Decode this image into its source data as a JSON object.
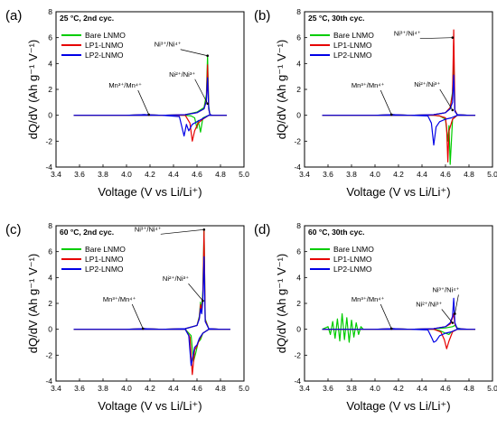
{
  "colors": {
    "Bare LNMO": "#00cc00",
    "LP1-LNMO": "#e60000",
    "LP2-LNMO": "#0000e6",
    "frame": "#000000"
  },
  "panels": [
    {
      "letter": "(a)",
      "cond": "25 °C, 2nd cyc.",
      "ylabel": "dQ/dV (Ah g⁻¹ V⁻¹)",
      "xlabel": "Voltage (V vs Li/Li⁺)",
      "annotations": [
        "Ni³⁺/Ni⁴⁺",
        "Ni²⁺/Ni³⁺",
        "Mn³⁺/Mn⁴⁺"
      ]
    },
    {
      "letter": "(b)",
      "cond": "25 °C, 30th cyc.",
      "ylabel": "dQ/dV (Ah g⁻¹ V⁻¹)",
      "xlabel": "Voltage (V vs Li/Li⁺)",
      "annotations": [
        "Ni³⁺/Ni⁴⁺",
        "Ni²⁺/Ni³⁺",
        "Mn³⁺/Mn⁴⁺"
      ]
    },
    {
      "letter": "(c)",
      "cond": "60 °C, 2nd cyc.",
      "ylabel": "dQ/dV (Ah g⁻¹ V⁻¹)",
      "xlabel": "Voltage (V vs Li/Li⁺)",
      "annotations": [
        "Ni³⁺/Ni⁴⁺",
        "Ni²⁺/Ni³⁺",
        "Mn³⁺/Mn⁴⁺"
      ]
    },
    {
      "letter": "(d)",
      "cond": "60 °C, 30th cyc.",
      "ylabel": "dQ/dV (Ah g⁻¹ V⁻¹)",
      "xlabel": "Voltage (V vs Li/Li⁺)",
      "annotations": [
        "Ni³⁺/Ni⁴⁺",
        "Ni²⁺/Ni³⁺",
        "Mn³⁺/Mn⁴⁺"
      ]
    }
  ],
  "chart_data": [
    {
      "type": "line",
      "panel": "(a)",
      "xlim": [
        3.4,
        5.0
      ],
      "ylim": [
        -4,
        8
      ],
      "xticks": [
        3.4,
        3.6,
        3.8,
        4.0,
        4.2,
        4.4,
        4.6,
        4.8,
        5.0
      ],
      "yticks": [
        -4,
        -2,
        0,
        2,
        4,
        6,
        8
      ],
      "legend": "top-left",
      "series": [
        {
          "name": "Bare LNMO",
          "x": [
            3.55,
            4.0,
            4.15,
            4.3,
            4.5,
            4.6,
            4.66,
            4.68,
            4.69,
            4.7,
            4.71,
            4.73,
            4.8,
            4.85,
            4.8,
            4.7,
            4.65,
            4.63,
            4.61,
            4.6,
            4.58,
            4.55,
            4.5,
            4.3,
            4.1,
            3.55
          ],
          "y": [
            0,
            0,
            0.05,
            0,
            0.05,
            0.25,
            0.6,
            1.6,
            4.6,
            0.7,
            0.05,
            0,
            0,
            0,
            0,
            0,
            -0.2,
            -1.3,
            -0.4,
            -1.0,
            -0.2,
            -0.05,
            0,
            0,
            0,
            0
          ]
        },
        {
          "name": "LP1-LNMO",
          "x": [
            3.55,
            4.0,
            4.15,
            4.3,
            4.5,
            4.6,
            4.66,
            4.68,
            4.69,
            4.7,
            4.71,
            4.73,
            4.8,
            4.85,
            4.8,
            4.7,
            4.65,
            4.61,
            4.58,
            4.56,
            4.54,
            4.5,
            4.3,
            4.1,
            3.55
          ],
          "y": [
            0,
            0,
            0.05,
            0,
            0.05,
            0.2,
            0.5,
            1.2,
            3.9,
            0.5,
            0.05,
            0,
            0,
            0,
            0,
            0,
            -0.3,
            -0.6,
            -1.2,
            -2.0,
            -0.6,
            0,
            0,
            0,
            0
          ]
        },
        {
          "name": "LP2-LNMO",
          "x": [
            3.55,
            4.0,
            4.15,
            4.3,
            4.5,
            4.6,
            4.66,
            4.68,
            4.69,
            4.7,
            4.71,
            4.73,
            4.8,
            4.85,
            4.8,
            4.7,
            4.65,
            4.6,
            4.56,
            4.53,
            4.51,
            4.49,
            4.45,
            4.3,
            4.1,
            3.55
          ],
          "y": [
            0,
            0,
            0.05,
            0,
            0.05,
            0.2,
            0.5,
            1.1,
            2.9,
            0.5,
            0.05,
            0,
            0,
            0,
            0,
            0,
            -0.25,
            -0.5,
            -0.7,
            -1.2,
            -0.7,
            -1.6,
            -0.1,
            0,
            0,
            0
          ]
        }
      ]
    },
    {
      "type": "line",
      "panel": "(b)",
      "xlim": [
        3.4,
        5.0
      ],
      "ylim": [
        -4,
        8
      ],
      "xticks": [
        3.4,
        3.6,
        3.8,
        4.0,
        4.2,
        4.4,
        4.6,
        4.8,
        5.0
      ],
      "yticks": [
        -4,
        -2,
        0,
        2,
        4,
        6,
        8
      ],
      "legend": "top-left",
      "series": [
        {
          "name": "Bare LNMO",
          "x": [
            3.55,
            4.0,
            4.15,
            4.3,
            4.5,
            4.6,
            4.64,
            4.66,
            4.67,
            4.68,
            4.7,
            4.8,
            4.85,
            4.8,
            4.7,
            4.66,
            4.64,
            4.63,
            4.62,
            4.6,
            4.55,
            4.5,
            4.3,
            4.1,
            3.55
          ],
          "y": [
            0,
            0,
            0.05,
            0,
            0.05,
            0.2,
            0.6,
            1.8,
            4.5,
            0.4,
            0.05,
            0,
            0,
            0,
            0,
            -0.3,
            -3.8,
            -0.8,
            -2.0,
            -0.3,
            -0.05,
            0,
            0,
            0,
            0
          ]
        },
        {
          "name": "LP1-LNMO",
          "x": [
            3.55,
            4.0,
            4.15,
            4.3,
            4.5,
            4.6,
            4.64,
            4.66,
            4.67,
            4.68,
            4.7,
            4.8,
            4.85,
            4.8,
            4.7,
            4.66,
            4.63,
            4.62,
            4.61,
            4.6,
            4.55,
            4.5,
            4.3,
            4.1,
            3.55
          ],
          "y": [
            0,
            0,
            0.05,
            0,
            0.05,
            0.2,
            0.6,
            1.6,
            6.6,
            0.4,
            0.05,
            0,
            0,
            0,
            0,
            -0.3,
            -1.2,
            -3.6,
            -1.0,
            -0.2,
            -0.05,
            0,
            0,
            0,
            0
          ]
        },
        {
          "name": "LP2-LNMO",
          "x": [
            3.55,
            4.0,
            4.15,
            4.3,
            4.5,
            4.6,
            4.64,
            4.66,
            4.67,
            4.68,
            4.7,
            4.8,
            4.85,
            4.8,
            4.7,
            4.65,
            4.6,
            4.55,
            4.52,
            4.5,
            4.48,
            4.45,
            4.3,
            4.1,
            3.55
          ],
          "y": [
            0,
            0,
            0.05,
            0,
            0.05,
            0.2,
            0.5,
            1.0,
            3.1,
            0.3,
            0.05,
            0,
            0,
            0,
            0,
            -0.2,
            -0.3,
            -0.5,
            -0.9,
            -2.3,
            -0.6,
            -0.05,
            0,
            0,
            0
          ]
        }
      ]
    },
    {
      "type": "line",
      "panel": "(c)",
      "xlim": [
        3.4,
        5.0
      ],
      "ylim": [
        -4,
        8
      ],
      "xticks": [
        3.4,
        3.6,
        3.8,
        4.0,
        4.2,
        4.4,
        4.6,
        4.8,
        5.0
      ],
      "yticks": [
        -4,
        -2,
        0,
        2,
        4,
        6,
        8
      ],
      "legend": "top-left",
      "series": [
        {
          "name": "Bare LNMO",
          "x": [
            3.55,
            4.0,
            4.15,
            4.3,
            4.5,
            4.6,
            4.62,
            4.63,
            4.64,
            4.65,
            4.66,
            4.67,
            4.7,
            4.8,
            4.88,
            4.8,
            4.7,
            4.65,
            4.63,
            4.61,
            4.59,
            4.57,
            4.55,
            4.5,
            4.3,
            4.1,
            3.55
          ],
          "y": [
            0,
            0,
            0.05,
            0,
            0.05,
            0.3,
            1.0,
            2.1,
            1.5,
            3.0,
            7.7,
            0.8,
            0.05,
            0,
            0,
            0,
            0,
            -0.3,
            -0.8,
            -1.0,
            -1.8,
            -2.5,
            -0.5,
            0,
            0,
            0,
            0
          ]
        },
        {
          "name": "LP1-LNMO",
          "x": [
            3.55,
            4.0,
            4.15,
            4.3,
            4.5,
            4.6,
            4.62,
            4.63,
            4.64,
            4.65,
            4.66,
            4.67,
            4.7,
            4.8,
            4.88,
            4.8,
            4.7,
            4.65,
            4.62,
            4.6,
            4.58,
            4.56,
            4.54,
            4.5,
            4.3,
            4.1,
            3.55
          ],
          "y": [
            0,
            0,
            0.05,
            0,
            0.05,
            0.3,
            0.9,
            1.9,
            1.4,
            2.6,
            7.6,
            0.7,
            0.05,
            0,
            0,
            0,
            0,
            -0.3,
            -0.8,
            -1.3,
            -1.6,
            -3.5,
            -0.6,
            0,
            0,
            0,
            0
          ]
        },
        {
          "name": "LP2-LNMO",
          "x": [
            3.55,
            4.0,
            4.15,
            4.3,
            4.5,
            4.6,
            4.62,
            4.63,
            4.64,
            4.65,
            4.66,
            4.67,
            4.7,
            4.8,
            4.88,
            4.8,
            4.7,
            4.65,
            4.62,
            4.6,
            4.58,
            4.55,
            4.53,
            4.5,
            4.3,
            4.1,
            3.55
          ],
          "y": [
            0,
            0,
            0.05,
            0,
            0.05,
            0.3,
            0.8,
            1.6,
            1.2,
            2.2,
            5.6,
            0.6,
            0.05,
            0,
            0,
            0,
            0,
            -0.3,
            -0.7,
            -1.2,
            -1.4,
            -2.8,
            -0.5,
            0,
            0,
            0,
            0
          ]
        }
      ]
    },
    {
      "type": "line",
      "panel": "(d)",
      "xlim": [
        3.4,
        5.0
      ],
      "ylim": [
        -4,
        8
      ],
      "xticks": [
        3.4,
        3.6,
        3.8,
        4.0,
        4.2,
        4.4,
        4.6,
        4.8,
        5.0
      ],
      "yticks": [
        -4,
        -2,
        0,
        2,
        4,
        6,
        8
      ],
      "legend": "top-left",
      "series": [
        {
          "name": "Bare LNMO",
          "x": [
            3.55,
            3.6,
            3.62,
            3.64,
            3.66,
            3.68,
            3.7,
            3.72,
            3.74,
            3.76,
            3.78,
            3.8,
            3.82,
            3.84,
            3.86,
            3.88,
            3.9,
            4.0,
            4.15,
            4.3,
            4.5,
            4.6,
            4.66,
            4.68,
            4.7,
            4.75,
            4.8,
            4.85,
            4.8,
            4.7,
            4.65,
            4.63,
            4.6,
            4.55,
            4.5,
            4.3,
            4.1,
            3.55
          ],
          "y": [
            0,
            0.2,
            -0.4,
            0.6,
            -0.7,
            0.8,
            -0.9,
            1.2,
            -0.8,
            0.9,
            -1.0,
            0.7,
            -0.6,
            0.5,
            -0.4,
            0.2,
            0,
            0,
            0.05,
            0,
            0.05,
            0.1,
            0.2,
            0.3,
            0.1,
            0,
            0,
            0,
            0,
            0,
            -0.2,
            -0.4,
            -0.3,
            -0.1,
            0,
            0,
            0,
            0
          ]
        },
        {
          "name": "LP1-LNMO",
          "x": [
            3.55,
            4.0,
            4.15,
            4.3,
            4.5,
            4.6,
            4.64,
            4.66,
            4.67,
            4.68,
            4.7,
            4.8,
            4.85,
            4.8,
            4.7,
            4.66,
            4.63,
            4.61,
            4.59,
            4.56,
            4.5,
            4.3,
            4.1,
            3.55
          ],
          "y": [
            0,
            0,
            0.05,
            0,
            0.05,
            0.2,
            0.4,
            0.9,
            1.2,
            0.4,
            0.05,
            0,
            0,
            0,
            0,
            -0.2,
            -0.9,
            -1.5,
            -0.8,
            -0.2,
            0,
            0,
            0,
            0
          ]
        },
        {
          "name": "LP2-LNMO",
          "x": [
            3.55,
            4.0,
            4.15,
            4.3,
            4.5,
            4.6,
            4.64,
            4.66,
            4.67,
            4.68,
            4.7,
            4.8,
            4.85,
            4.8,
            4.7,
            4.65,
            4.6,
            4.55,
            4.52,
            4.5,
            4.48,
            4.45,
            4.3,
            4.1,
            3.55
          ],
          "y": [
            0,
            0,
            0.05,
            0,
            0.05,
            0.2,
            0.5,
            1.0,
            2.4,
            0.5,
            0.05,
            0,
            0,
            0,
            0,
            -0.2,
            -0.3,
            -0.5,
            -0.9,
            -1.0,
            -0.6,
            -0.05,
            0,
            0,
            0
          ]
        }
      ]
    }
  ]
}
